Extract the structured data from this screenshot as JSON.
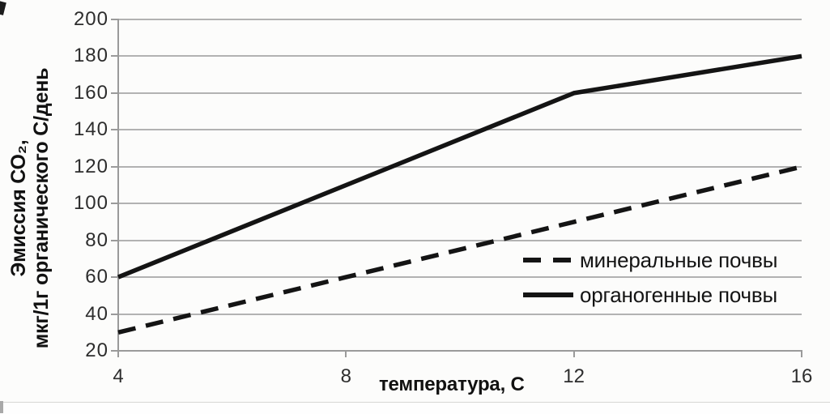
{
  "chart_data": {
    "type": "line",
    "title": "",
    "xlabel": "температура, C",
    "ylabel_line1": "Эмиссия СО₂,",
    "ylabel_line2": "мкг/1г органического С/день",
    "xlim": [
      4,
      16
    ],
    "ylim": [
      20,
      200
    ],
    "x_ticks": [
      4,
      8,
      12,
      16
    ],
    "y_ticks": [
      200,
      180,
      160,
      140,
      120,
      100,
      80,
      60,
      40,
      20
    ],
    "grid": "horizontal gridlines at every y tick",
    "legend_position": "inside plot, right-center, no border",
    "series": [
      {
        "name": "минеральные почвы",
        "style": "dashed",
        "color": "#141414",
        "points": [
          [
            4,
            30
          ],
          [
            8,
            60
          ],
          [
            12,
            90
          ],
          [
            16,
            120
          ]
        ]
      },
      {
        "name": "органогенные почвы",
        "style": "solid",
        "color": "#141414",
        "points": [
          [
            4,
            60
          ],
          [
            12,
            160
          ],
          [
            16,
            180
          ]
        ]
      }
    ],
    "colors": {
      "gridline": "#b2b2b2",
      "axis": "#9a9a9a",
      "tick_label": "#2d2d2d",
      "line": "#141414",
      "background": "#fcfcfb"
    }
  },
  "legend": {
    "items": [
      {
        "label": "минеральные почвы",
        "style": "dashed"
      },
      {
        "label": "органогенные почвы",
        "style": "solid"
      }
    ]
  }
}
